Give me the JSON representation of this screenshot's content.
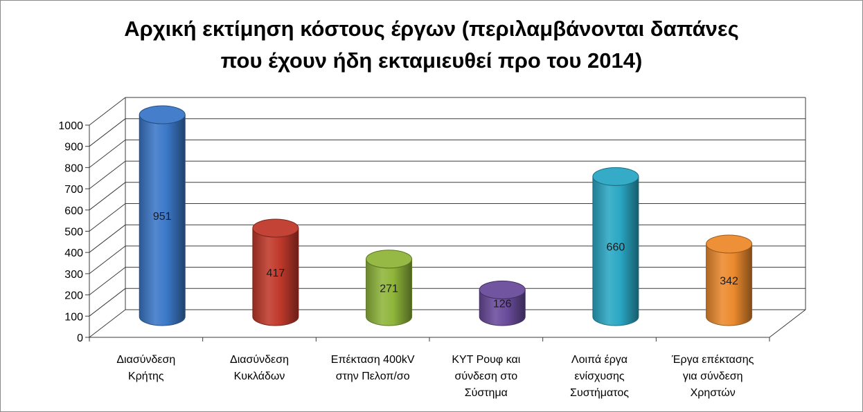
{
  "chart_data": {
    "type": "bar",
    "style": "3d-cylinder",
    "title": "Αρχική εκτίμηση κόστους έργων (περιλαμβάνονται δαπάνες που έχουν ήδη εκταμιευθεί προ του 2014)",
    "title_lines": [
      "Αρχική εκτίμηση κόστους έργων (περιλαμβάνονται δαπάνες",
      "που έχουν ήδη εκταμιευθεί προ του 2014)"
    ],
    "categories": [
      [
        "Διασύνδεση",
        "Κρήτης"
      ],
      [
        "Διασύνδεση",
        "Κυκλάδων"
      ],
      [
        "Επέκταση 400kV",
        "στην Πελοπ/σο"
      ],
      [
        "ΚΥΤ Ρουφ και",
        "σύνδεση στο",
        "Σύστημα"
      ],
      [
        "Λοιπά έργα",
        "ενίσχυσης",
        "Συστήματος"
      ],
      [
        "Έργα επέκτασης",
        "για σύνδεση",
        "Χρηστών"
      ]
    ],
    "values": [
      951,
      417,
      271,
      126,
      660,
      342
    ],
    "data_labels": [
      "951",
      "417",
      "271",
      "126",
      "660",
      "342"
    ],
    "colors": [
      "#3b78c8",
      "#c0392b",
      "#8fb53a",
      "#6a4c9c",
      "#2aa7c4",
      "#ec8a2e"
    ],
    "ylim": [
      0,
      1000
    ],
    "yticks": [
      0,
      100,
      200,
      300,
      400,
      500,
      600,
      700,
      800,
      900,
      1000
    ],
    "grid": true,
    "legend": "none"
  }
}
